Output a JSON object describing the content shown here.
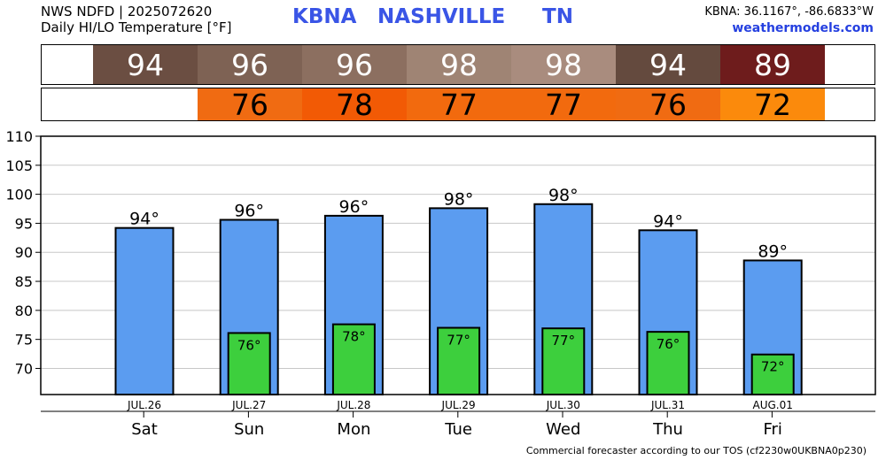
{
  "header": {
    "source_line": "NWS NDFD | 2025072620",
    "subtitle": "Daily HI/LO Temperature [°F]",
    "station_code": "KBNA",
    "station_city": "NASHVILLE",
    "station_state": "TN",
    "coords": "KBNA: 36.1167°, -86.6833°W",
    "site": "weathermodels.com"
  },
  "footer": {
    "text": "Commercial forecaster according to our TOS (cf2230w0UKBNA0p230)"
  },
  "colors": {
    "hi_bar": "#5b9cf0",
    "lo_bar": "#3dcf3d",
    "hi_strip": [
      "#6b4e42",
      "#7e6254",
      "#8c6f60",
      "#9f8474",
      "#a98c7e",
      "#644a3e",
      "#6e1c1c"
    ],
    "lo_strip": [
      "",
      "#f06b12",
      "#f25a05",
      "#f26a0e",
      "#f26a0e",
      "#f06b12",
      "#fb8a0c"
    ]
  },
  "chart_data": {
    "type": "bar",
    "categories": [
      "Sat",
      "Sun",
      "Mon",
      "Tue",
      "Wed",
      "Thu",
      "Fri"
    ],
    "dates": [
      "JUL.26",
      "JUL.27",
      "JUL.28",
      "JUL.29",
      "JUL.30",
      "JUL.31",
      "AUG.01"
    ],
    "series": [
      {
        "values": [
          94.2,
          95.6,
          96.3,
          97.6,
          98.3,
          93.8,
          88.6
        ],
        "labels": [
          "94°",
          "96°",
          "96°",
          "98°",
          "98°",
          "94°",
          "89°"
        ]
      },
      {
        "values": [
          null,
          76.1,
          77.6,
          77.0,
          76.9,
          76.3,
          72.4
        ],
        "labels": [
          "",
          "76°",
          "78°",
          "77°",
          "77°",
          "76°",
          "72°"
        ]
      }
    ],
    "hi_strip_values": [
      "94",
      "96",
      "96",
      "98",
      "98",
      "94",
      "89"
    ],
    "lo_strip_values": [
      "",
      "76",
      "78",
      "77",
      "77",
      "76",
      "72"
    ],
    "yticks": [
      110,
      105,
      100,
      95,
      90,
      85,
      80,
      75,
      70
    ],
    "ylim": [
      65.5,
      110
    ],
    "grid": true
  }
}
